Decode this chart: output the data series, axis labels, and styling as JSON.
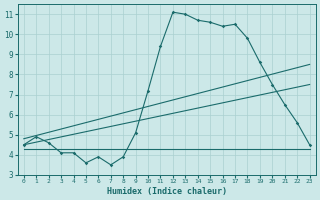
{
  "xlabel": "Humidex (Indice chaleur)",
  "background_color": "#cce8e8",
  "line_color": "#1a6b6b",
  "grid_color": "#aad0d0",
  "xlim": [
    -0.5,
    23.5
  ],
  "ylim": [
    3,
    11.5
  ],
  "yticks": [
    3,
    4,
    5,
    6,
    7,
    8,
    9,
    10,
    11
  ],
  "xticks": [
    0,
    1,
    2,
    3,
    4,
    5,
    6,
    7,
    8,
    9,
    10,
    11,
    12,
    13,
    14,
    15,
    16,
    17,
    18,
    19,
    20,
    21,
    22,
    23
  ],
  "series1_x": [
    0,
    1,
    2,
    3,
    4,
    5,
    6,
    7,
    8,
    9,
    10,
    11,
    12,
    13,
    14,
    15,
    16,
    17,
    18,
    19,
    20,
    21,
    22,
    23
  ],
  "series1_y": [
    4.5,
    4.9,
    4.6,
    4.1,
    4.1,
    3.6,
    3.9,
    3.5,
    3.9,
    5.1,
    7.2,
    9.4,
    11.1,
    11.0,
    10.7,
    10.6,
    10.4,
    10.5,
    9.8,
    8.6,
    7.5,
    6.5,
    5.6,
    4.5
  ],
  "series2_x": [
    0,
    23
  ],
  "series2_y": [
    4.3,
    4.3
  ],
  "series3_x": [
    0,
    23
  ],
  "series3_y": [
    4.5,
    7.5
  ],
  "series4_x": [
    0,
    23
  ],
  "series4_y": [
    4.8,
    8.5
  ]
}
